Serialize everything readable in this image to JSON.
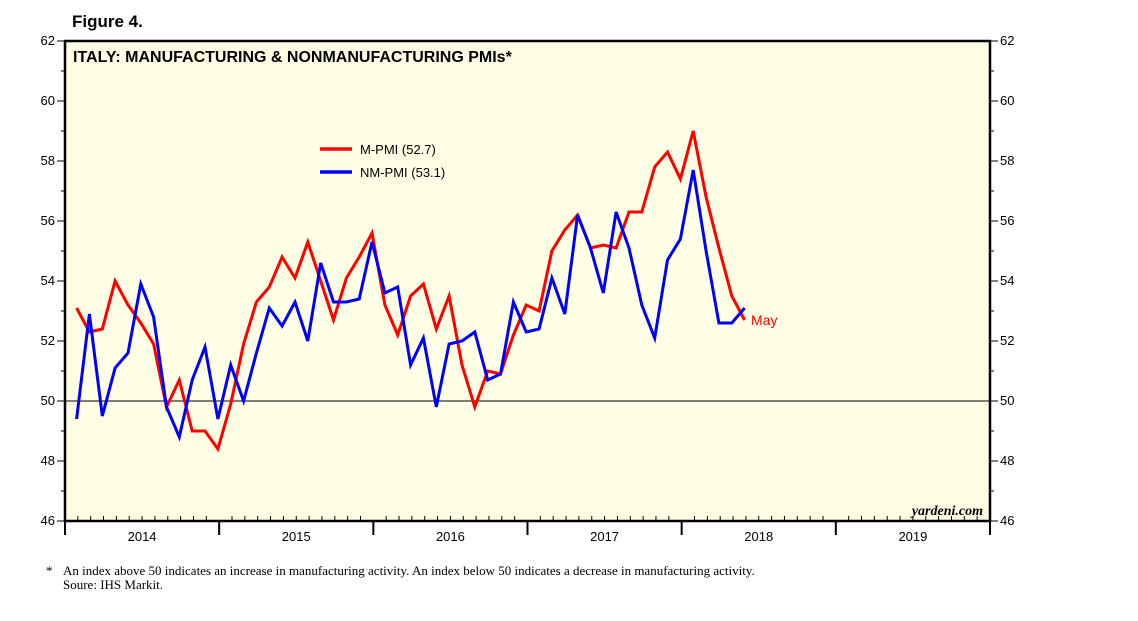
{
  "chart_data": {
    "type": "line",
    "figure_label": "Figure 4.",
    "title": "ITALY: MANUFACTURING & NONMANUFACTURING PMIs*",
    "xlabel": "",
    "ylabel": "",
    "ylim": [
      46,
      62
    ],
    "yticks": [
      46,
      48,
      50,
      52,
      54,
      56,
      58,
      60,
      62
    ],
    "xticks": [
      "2014",
      "2015",
      "2016",
      "2017",
      "2018",
      "2019"
    ],
    "x_start": "Jan 2014",
    "x_end": "May 2018",
    "reference_line": 50,
    "legend_position": "top-center",
    "series": [
      {
        "name": "M-PMI (52.7)",
        "color": "#ff0000",
        "values": [
          53.1,
          52.3,
          52.4,
          54.0,
          53.2,
          52.6,
          51.9,
          49.8,
          50.7,
          49.0,
          49.0,
          48.4,
          49.9,
          51.9,
          53.3,
          53.8,
          54.8,
          54.1,
          55.3,
          54.0,
          52.7,
          54.1,
          54.8,
          55.6,
          53.2,
          52.2,
          53.5,
          53.9,
          52.4,
          53.5,
          51.2,
          49.8,
          51.0,
          50.9,
          52.2,
          53.2,
          53.0,
          55.0,
          55.7,
          56.2,
          55.1,
          55.2,
          55.1,
          56.3,
          56.3,
          57.8,
          58.3,
          57.4,
          59.0,
          56.8,
          55.1,
          53.5,
          52.7
        ]
      },
      {
        "name": "NM-PMI (53.1)",
        "color": "#0000ff",
        "values": [
          49.4,
          52.9,
          49.5,
          51.1,
          51.6,
          53.9,
          52.8,
          49.8,
          48.8,
          50.7,
          51.8,
          49.4,
          51.2,
          50.0,
          51.6,
          53.1,
          52.5,
          53.3,
          52.0,
          54.6,
          53.3,
          53.3,
          53.4,
          55.3,
          53.6,
          53.8,
          51.2,
          52.1,
          49.8,
          51.9,
          52.0,
          52.3,
          50.7,
          50.9,
          53.3,
          52.3,
          52.4,
          54.1,
          52.9,
          56.2,
          55.1,
          53.6,
          56.3,
          55.1,
          53.2,
          52.1,
          54.7,
          55.4,
          57.7,
          55.0,
          52.6,
          52.6,
          53.1
        ]
      }
    ],
    "annotations": {
      "last_point": "May",
      "source_brand": "yardeni.com"
    },
    "footnote_marker": "*",
    "footnote": "An index above 50 indicates an increase in manufacturing activity. An index below 50 indicates a decrease in manufacturing activity.",
    "source": "Soure: IHS Markit.",
    "background_color": "#ffffe5"
  }
}
